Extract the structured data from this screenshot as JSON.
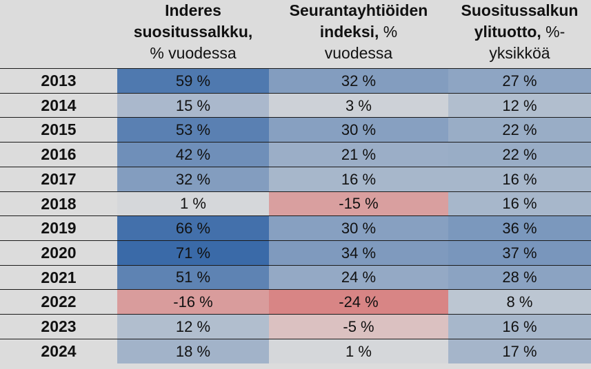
{
  "columns": [
    {
      "bold": "Inderes suosituss­a­lkku,",
      "lines": [
        "Inderes",
        "suositussalkku,"
      ],
      "normal": "% vuodessa"
    },
    {
      "lines": [
        "Seurantayhtiöiden",
        "indeksi,"
      ],
      "inline_normal": " %",
      "normal": "vuodessa"
    },
    {
      "lines": [
        "Suositussalkun",
        "ylituotto,"
      ],
      "inline_normal": " %-",
      "normal": "yksikköä"
    }
  ],
  "chart_data": {
    "type": "table",
    "columns": [
      "Inderes suositussalkku, % vuodessa",
      "Seurantayhtiöiden indeksi, % vuodessa",
      "Suositussalkun ylituotto, %-yksikköä"
    ],
    "rows": [
      {
        "year": "2013",
        "values": [
          "59 %",
          "32 %",
          "27 %"
        ],
        "numbers": [
          59,
          32,
          27
        ]
      },
      {
        "year": "2014",
        "values": [
          "15 %",
          "3 %",
          "12 %"
        ],
        "numbers": [
          15,
          3,
          12
        ]
      },
      {
        "year": "2015",
        "values": [
          "53 %",
          "30 %",
          "22 %"
        ],
        "numbers": [
          53,
          30,
          22
        ]
      },
      {
        "year": "2016",
        "values": [
          "42 %",
          "21 %",
          "22 %"
        ],
        "numbers": [
          42,
          21,
          22
        ]
      },
      {
        "year": "2017",
        "values": [
          "32 %",
          "16 %",
          "16 %"
        ],
        "numbers": [
          32,
          16,
          16
        ]
      },
      {
        "year": "2018",
        "values": [
          "1 %",
          "-15 %",
          "16 %"
        ],
        "numbers": [
          1,
          -15,
          16
        ]
      },
      {
        "year": "2019",
        "values": [
          "66 %",
          "30 %",
          "36 %"
        ],
        "numbers": [
          66,
          30,
          36
        ]
      },
      {
        "year": "2020",
        "values": [
          "71 %",
          "34 %",
          "37 %"
        ],
        "numbers": [
          71,
          34,
          37
        ]
      },
      {
        "year": "2021",
        "values": [
          "51 %",
          "24 %",
          "28 %"
        ],
        "numbers": [
          51,
          24,
          28
        ]
      },
      {
        "year": "2022",
        "values": [
          "-16 %",
          "-24 %",
          "8 %"
        ],
        "numbers": [
          -16,
          -24,
          8
        ]
      },
      {
        "year": "2023",
        "values": [
          "12 %",
          "-5 %",
          "16 %"
        ],
        "numbers": [
          12,
          -5,
          16
        ]
      },
      {
        "year": "2024",
        "values": [
          "18 %",
          "1 %",
          "17 %"
        ],
        "numbers": [
          18,
          1,
          17
        ]
      }
    ],
    "colors": {
      "positive_max": "#3a6aa8",
      "neutral": "#dcdcdc",
      "negative_max": "#d64a4a"
    },
    "color_scale_max_abs": 71
  }
}
